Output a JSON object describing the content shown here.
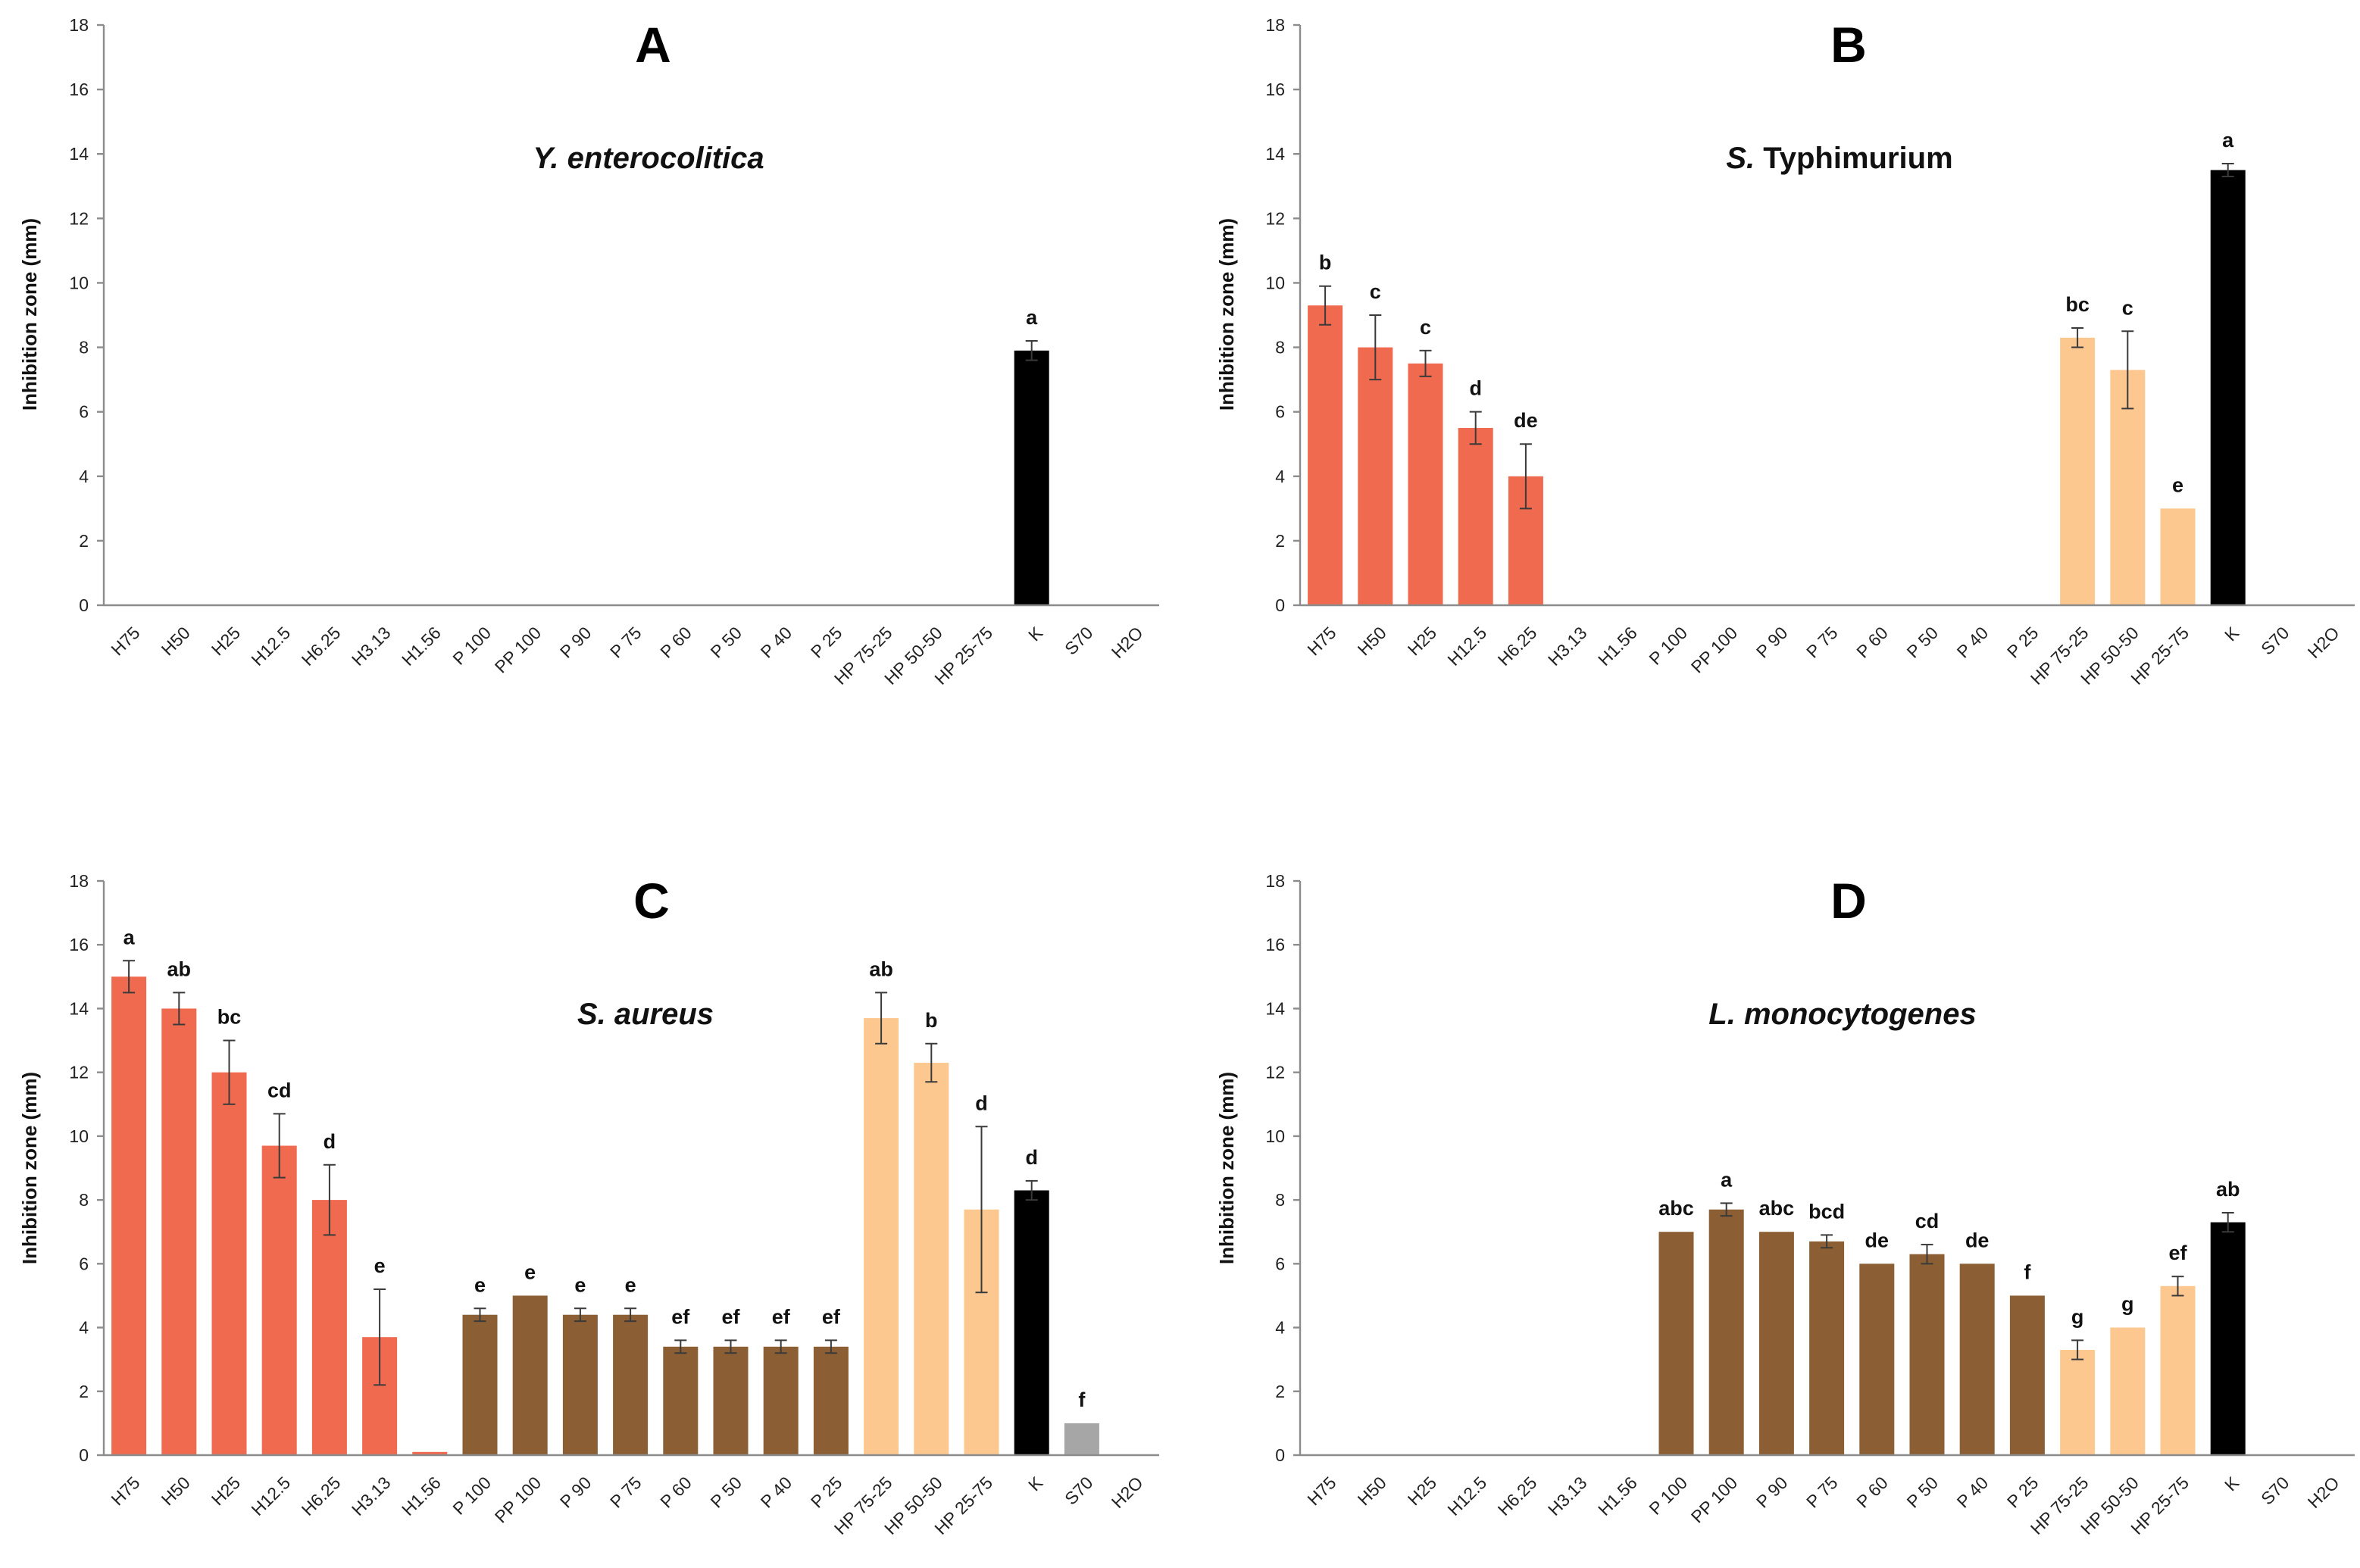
{
  "colors": {
    "H": "#f06a50",
    "P": "#8b5e34",
    "HP": "#fdc88f",
    "K": "#000000",
    "S": "#a6a6a6"
  },
  "chart_data": [
    {
      "type": "bar",
      "letter": "A",
      "title": "Y. enterocolitica",
      "title_prefix": "Y.",
      "title_rest": "enterocolitica",
      "title_italic_all": true,
      "ylabel": "Inhibition zone (mm)",
      "xlabel": "",
      "ylim": [
        0,
        18
      ],
      "yticks": [
        0,
        2,
        4,
        6,
        8,
        10,
        12,
        14,
        16,
        18
      ],
      "categories": [
        "H75",
        "H50",
        "H25",
        "H12.5",
        "H6.25",
        "H3.13",
        "H1.56",
        "P 100",
        "PP 100",
        "P 90",
        "P 75",
        "P 60",
        "P 50",
        "P 40",
        "P 25",
        "HP 75-25",
        "HP 50-50",
        "HP 25-75",
        "K",
        "S70",
        "H2O"
      ],
      "groups": [
        "H",
        "H",
        "H",
        "H",
        "H",
        "H",
        "H",
        "P",
        "P",
        "P",
        "P",
        "P",
        "P",
        "P",
        "P",
        "HP",
        "HP",
        "HP",
        "K",
        "S",
        "S"
      ],
      "values": [
        0,
        0,
        0,
        0,
        0,
        0,
        0,
        0,
        0,
        0,
        0,
        0,
        0,
        0,
        0,
        0,
        0,
        0,
        7.9,
        0,
        0
      ],
      "errors": [
        0,
        0,
        0,
        0,
        0,
        0,
        0,
        0,
        0,
        0,
        0,
        0,
        0,
        0,
        0,
        0,
        0,
        0,
        0.3,
        0,
        0
      ],
      "labels": [
        "",
        "",
        "",
        "",
        "",
        "",
        "",
        "",
        "",
        "",
        "",
        "",
        "",
        "",
        "",
        "",
        "",
        "",
        "a",
        "",
        ""
      ]
    },
    {
      "type": "bar",
      "letter": "B",
      "title": "S. Typhimurium",
      "title_prefix": "S.",
      "title_rest": "Typhimurium",
      "title_italic_all": false,
      "ylabel": "Inhibition zone (mm)",
      "xlabel": "",
      "ylim": [
        0,
        18
      ],
      "yticks": [
        0,
        2,
        4,
        6,
        8,
        10,
        12,
        14,
        16,
        18
      ],
      "categories": [
        "H75",
        "H50",
        "H25",
        "H12.5",
        "H6.25",
        "H3.13",
        "H1.56",
        "P 100",
        "PP 100",
        "P 90",
        "P 75",
        "P 60",
        "P 50",
        "P 40",
        "P 25",
        "HP 75-25",
        "HP 50-50",
        "HP 25-75",
        "K",
        "S70",
        "H2O"
      ],
      "groups": [
        "H",
        "H",
        "H",
        "H",
        "H",
        "H",
        "H",
        "P",
        "P",
        "P",
        "P",
        "P",
        "P",
        "P",
        "P",
        "HP",
        "HP",
        "HP",
        "K",
        "S",
        "S"
      ],
      "values": [
        9.3,
        8.0,
        7.5,
        5.5,
        4.0,
        0,
        0,
        0,
        0,
        0,
        0,
        0,
        0,
        0,
        0,
        8.3,
        7.3,
        3.0,
        13.5,
        0,
        0
      ],
      "errors": [
        0.6,
        1.0,
        0.4,
        0.5,
        1.0,
        0,
        0,
        0,
        0,
        0,
        0,
        0,
        0,
        0,
        0,
        0.3,
        1.2,
        0,
        0.2,
        0,
        0
      ],
      "labels": [
        "b",
        "c",
        "c",
        "d",
        "de",
        "",
        "",
        "",
        "",
        "",
        "",
        "",
        "",
        "",
        "",
        "bc",
        "c",
        "e",
        "a",
        "",
        ""
      ]
    },
    {
      "type": "bar",
      "letter": "C",
      "title": "S. aureus",
      "title_prefix": "S.",
      "title_rest": "aureus",
      "title_italic_all": true,
      "ylabel": "Inhibition zone (mm)",
      "xlabel": "",
      "ylim": [
        0,
        18
      ],
      "yticks": [
        0,
        2,
        4,
        6,
        8,
        10,
        12,
        14,
        16,
        18
      ],
      "categories": [
        "H75",
        "H50",
        "H25",
        "H12.5",
        "H6.25",
        "H3.13",
        "H1.56",
        "P 100",
        "PP 100",
        "P 90",
        "P 75",
        "P 60",
        "P 50",
        "P 40",
        "P 25",
        "HP 75-25",
        "HP 50-50",
        "HP 25-75",
        "K",
        "S70",
        "H2O"
      ],
      "groups": [
        "H",
        "H",
        "H",
        "H",
        "H",
        "H",
        "H",
        "P",
        "P",
        "P",
        "P",
        "P",
        "P",
        "P",
        "P",
        "HP",
        "HP",
        "HP",
        "K",
        "S",
        "S"
      ],
      "values": [
        15.0,
        14.0,
        12.0,
        9.7,
        8.0,
        3.7,
        0.1,
        4.4,
        5.0,
        4.4,
        4.4,
        3.4,
        3.4,
        3.4,
        3.4,
        13.7,
        12.3,
        7.7,
        8.3,
        1.0,
        0
      ],
      "errors": [
        0.5,
        0.5,
        1.0,
        1.0,
        1.1,
        1.5,
        0,
        0.2,
        0,
        0.2,
        0.2,
        0.2,
        0.2,
        0.2,
        0.2,
        0.8,
        0.6,
        2.6,
        0.3,
        0,
        0
      ],
      "labels": [
        "a",
        "ab",
        "bc",
        "cd",
        "d",
        "e",
        "",
        "e",
        "e",
        "e",
        "e",
        "ef",
        "ef",
        "ef",
        "ef",
        "ab",
        "b",
        "d",
        "d",
        "f",
        ""
      ]
    },
    {
      "type": "bar",
      "letter": "D",
      "title": "L. monocytogenes",
      "title_prefix": "L.",
      "title_rest": "monocytogenes",
      "title_italic_all": true,
      "ylabel": "Inhibition zone (mm)",
      "xlabel": "",
      "ylim": [
        0,
        18
      ],
      "yticks": [
        0,
        2,
        4,
        6,
        8,
        10,
        12,
        14,
        16,
        18
      ],
      "categories": [
        "H75",
        "H50",
        "H25",
        "H12.5",
        "H6.25",
        "H3.13",
        "H1.56",
        "P 100",
        "PP 100",
        "P 90",
        "P 75",
        "P 60",
        "P 50",
        "P 40",
        "P 25",
        "HP 75-25",
        "HP 50-50",
        "HP 25-75",
        "K",
        "S70",
        "H2O"
      ],
      "groups": [
        "H",
        "H",
        "H",
        "H",
        "H",
        "H",
        "H",
        "P",
        "P",
        "P",
        "P",
        "P",
        "P",
        "P",
        "P",
        "HP",
        "HP",
        "HP",
        "K",
        "S",
        "S"
      ],
      "values": [
        0,
        0,
        0,
        0,
        0,
        0,
        0,
        7.0,
        7.7,
        7.0,
        6.7,
        6.0,
        6.3,
        6.0,
        5.0,
        3.3,
        4.0,
        5.3,
        7.3,
        0,
        0
      ],
      "errors": [
        0,
        0,
        0,
        0,
        0,
        0,
        0,
        0,
        0.2,
        0,
        0.2,
        0,
        0.3,
        0,
        0,
        0.3,
        0,
        0.3,
        0.3,
        0,
        0
      ],
      "labels": [
        "",
        "",
        "",
        "",
        "",
        "",
        "",
        "abc",
        "a",
        "abc",
        "bcd",
        "de",
        "cd",
        "de",
        "f",
        "g",
        "g",
        "ef",
        "ab",
        "",
        ""
      ]
    }
  ]
}
